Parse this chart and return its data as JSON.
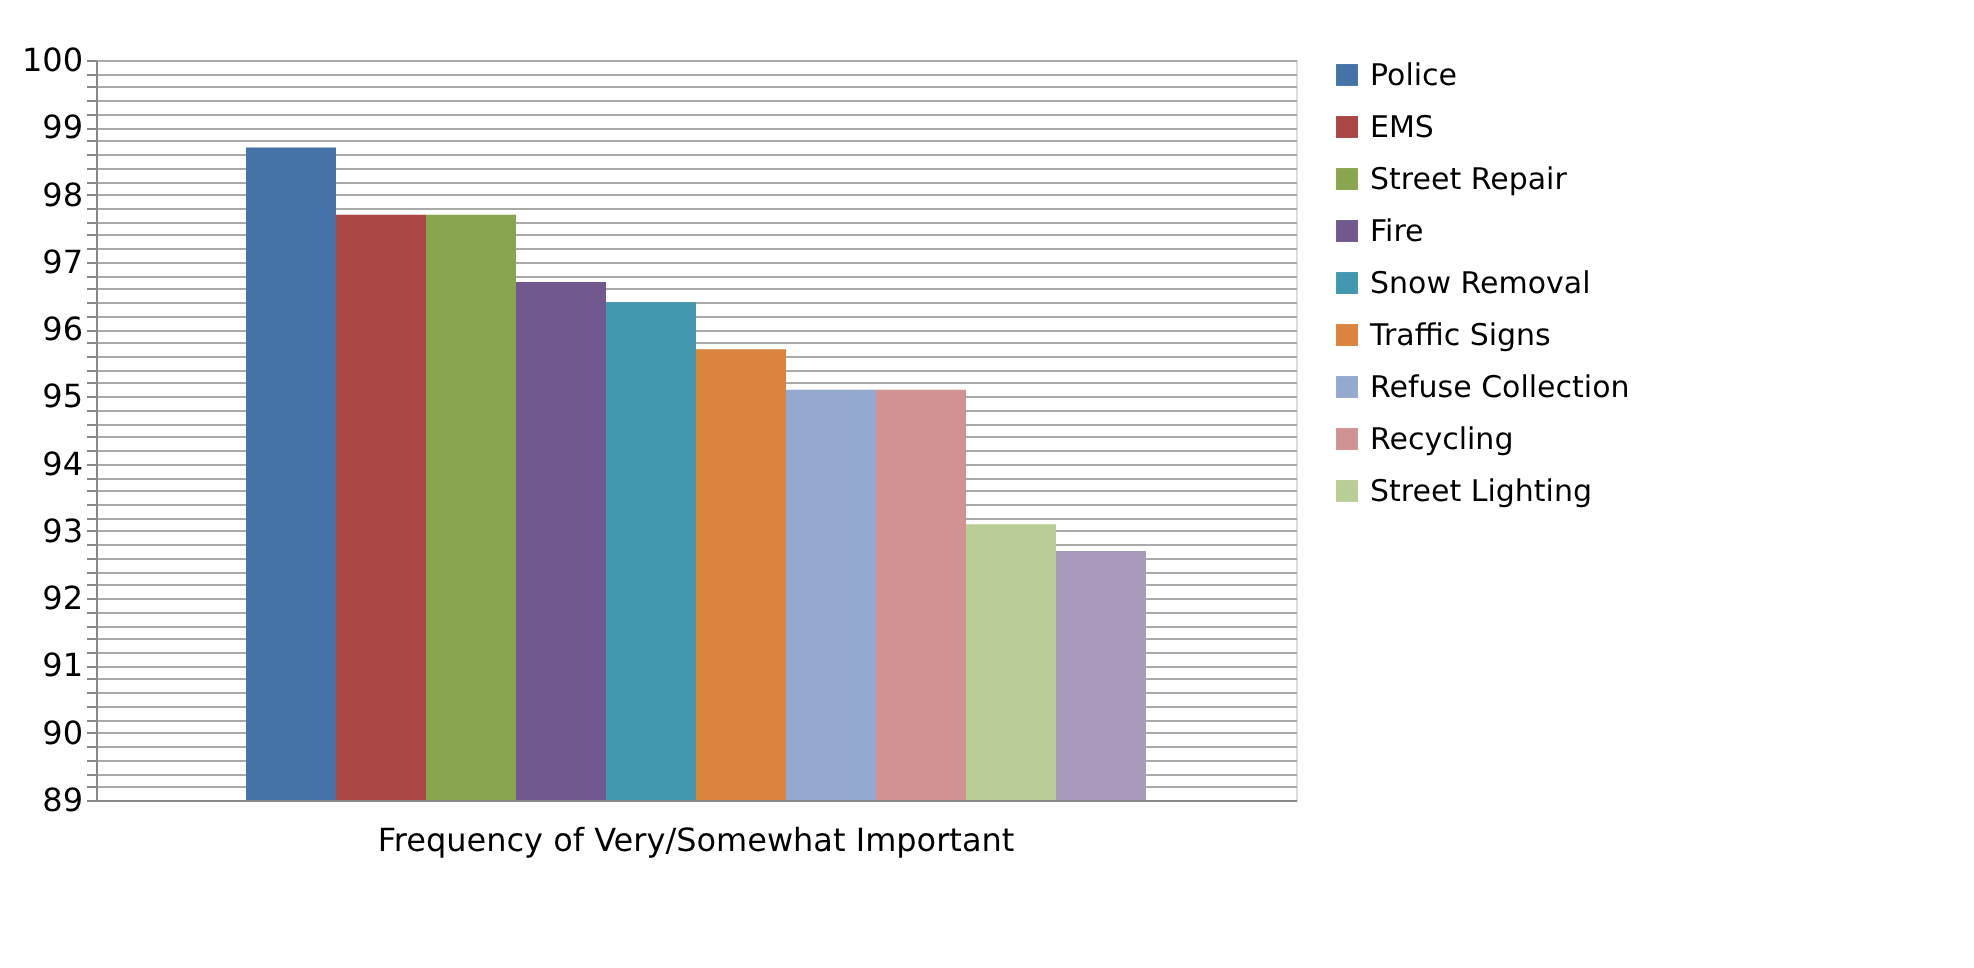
{
  "chart_data": {
    "type": "bar",
    "categories": [
      "Frequency of Very/Somewhat Important"
    ],
    "series": [
      {
        "name": "Police",
        "color": "#4572a7",
        "values": [
          98.7
        ]
      },
      {
        "name": "EMS",
        "color": "#aa4643",
        "values": [
          97.7
        ]
      },
      {
        "name": "Street Repair",
        "color": "#89a54e",
        "values": [
          97.7
        ]
      },
      {
        "name": "Fire",
        "color": "#71588f",
        "values": [
          96.7
        ]
      },
      {
        "name": "Snow Removal",
        "color": "#4198af",
        "values": [
          96.4
        ]
      },
      {
        "name": "Traffic Signs",
        "color": "#db843d",
        "values": [
          95.7
        ]
      },
      {
        "name": "Refuse Collection",
        "color": "#93a9cf",
        "values": [
          95.1
        ]
      },
      {
        "name": "Recycling",
        "color": "#d19392",
        "values": [
          95.1
        ]
      },
      {
        "name": "Street Lighting",
        "color": "#b9cd96",
        "values": [
          93.1
        ]
      },
      {
        "color": "#a99bbd",
        "values": [
          92.7
        ]
      }
    ],
    "ylim": [
      89,
      100
    ],
    "yticks": [
      89,
      {
        "value": 89.2,
        "label": null
      },
      {
        "value": 89.4,
        "label": null
      },
      {
        "value": 89.6,
        "label": null
      },
      {
        "value": 89.8,
        "label": null
      },
      90,
      {
        "value": 90.2,
        "label": null
      },
      {
        "value": 90.4,
        "label": null
      },
      {
        "value": 90.6,
        "label": null
      },
      {
        "value": 90.8,
        "label": null
      },
      91,
      {
        "value": 91.2,
        "label": null
      },
      {
        "value": 91.4,
        "label": null
      },
      {
        "value": 91.6,
        "label": null
      },
      {
        "value": 91.8,
        "label": null
      },
      92,
      {
        "value": 92.2,
        "label": null
      },
      {
        "value": 92.4,
        "label": null
      },
      {
        "value": 92.6,
        "label": null
      },
      {
        "value": 92.8,
        "label": null
      },
      93,
      {
        "value": 93.2,
        "label": null
      },
      {
        "value": 93.4,
        "label": null
      },
      {
        "value": 93.6,
        "label": null
      },
      {
        "value": 93.8,
        "label": null
      },
      94,
      {
        "value": 94.2,
        "label": null
      },
      {
        "value": 94.4,
        "label": null
      },
      {
        "value": 94.6,
        "label": null
      },
      {
        "value": 94.8,
        "label": null
      },
      95,
      {
        "value": 95.2,
        "label": null
      },
      {
        "value": 95.4,
        "label": null
      },
      {
        "value": 95.6,
        "label": null
      },
      {
        "value": 95.8,
        "label": null
      },
      96,
      {
        "value": 96.2,
        "label": null
      },
      {
        "value": 96.4,
        "label": null
      },
      {
        "value": 96.6,
        "label": null
      },
      {
        "value": 96.8,
        "label": null
      },
      97,
      {
        "value": 97.2,
        "label": null
      },
      {
        "value": 97.4,
        "label": null
      },
      {
        "value": 97.6,
        "label": null
      },
      {
        "value": 97.8,
        "label": null
      },
      98,
      {
        "value": 98.2,
        "label": null
      },
      {
        "value": 98.4,
        "label": null
      },
      {
        "value": 98.6,
        "label": null
      },
      {
        "value": 98.8,
        "label": null
      },
      99,
      {
        "value": 99.2,
        "label": null
      },
      {
        "value": 99.4,
        "label": null
      },
      {
        "value": 99.6,
        "label": null
      },
      {
        "value": 99.8,
        "label": null
      },
      100
    ],
    "grid": "y",
    "legend": "right"
  }
}
